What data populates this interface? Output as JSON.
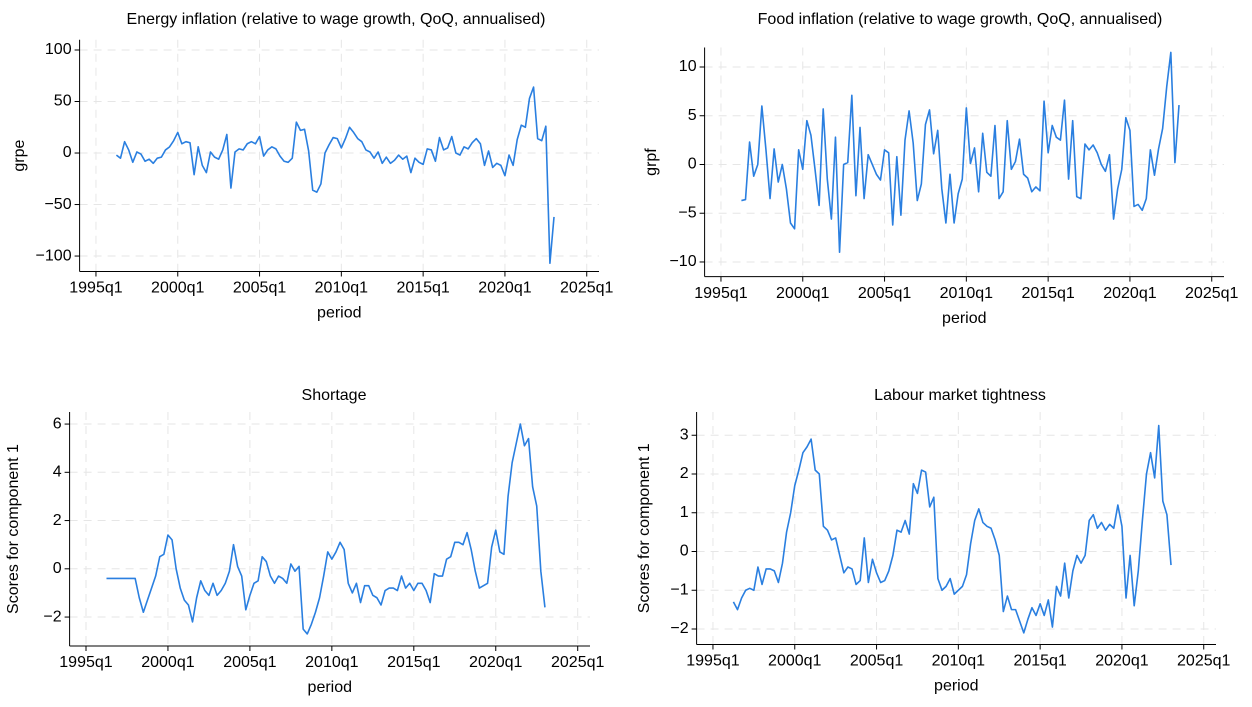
{
  "chart_data": [
    {
      "type": "line",
      "title": "Energy inflation (relative to wage growth, QoQ, annualised)",
      "xlabel": "period",
      "ylabel": "grpe",
      "color": "#2a7fe0",
      "grid": true,
      "xlim": [
        "1994q1",
        "2025q4"
      ],
      "xticks": [
        "1995q1",
        "2000q1",
        "2005q1",
        "2010q1",
        "2015q1",
        "2020q1",
        "2025q1"
      ],
      "ylim": [
        -115,
        110
      ],
      "yticks": [
        {
          "value": -100,
          "label": "−100"
        },
        {
          "value": -50,
          "label": "−50"
        },
        0,
        50,
        100
      ],
      "x": [
        "1996q2",
        "1996q3",
        "1996q4",
        "1997q1",
        "1997q2",
        "1997q3",
        "1997q4",
        "1998q1",
        "1998q2",
        "1998q3",
        "1998q4",
        "1999q1",
        "1999q2",
        "1999q3",
        "1999q4",
        "2000q1",
        "2000q2",
        "2000q3",
        "2000q4",
        "2001q1",
        "2001q2",
        "2001q3",
        "2001q4",
        "2002q1",
        "2002q2",
        "2002q3",
        "2002q4",
        "2003q1",
        "2003q2",
        "2003q3",
        "2003q4",
        "2004q1",
        "2004q2",
        "2004q3",
        "2004q4",
        "2005q1",
        "2005q2",
        "2005q3",
        "2005q4",
        "2006q1",
        "2006q2",
        "2006q3",
        "2006q4",
        "2007q1",
        "2007q2",
        "2007q3",
        "2007q4",
        "2008q1",
        "2008q2",
        "2008q3",
        "2008q4",
        "2009q1",
        "2009q2",
        "2009q3",
        "2009q4",
        "2010q1",
        "2010q2",
        "2010q3",
        "2010q4",
        "2011q1",
        "2011q2",
        "2011q3",
        "2011q4",
        "2012q1",
        "2012q2",
        "2012q3",
        "2012q4",
        "2013q1",
        "2013q2",
        "2013q3",
        "2013q4",
        "2014q1",
        "2014q2",
        "2014q3",
        "2014q4",
        "2015q1",
        "2015q2",
        "2015q3",
        "2015q4",
        "2016q1",
        "2016q2",
        "2016q3",
        "2016q4",
        "2017q1",
        "2017q2",
        "2017q3",
        "2017q4",
        "2018q1",
        "2018q2",
        "2018q3",
        "2018q4",
        "2019q1",
        "2019q2",
        "2019q3",
        "2019q4",
        "2020q1",
        "2020q2",
        "2020q3",
        "2020q4",
        "2021q1",
        "2021q2",
        "2021q3",
        "2021q4",
        "2022q1",
        "2022q2",
        "2022q3",
        "2022q4",
        "2023q1"
      ],
      "values": [
        -2,
        -5,
        11,
        3,
        -9,
        1,
        -1,
        -8,
        -6,
        -10,
        -5,
        -4,
        3,
        6,
        12,
        20,
        9,
        11,
        10,
        -21,
        6,
        -12,
        -19,
        1,
        -4,
        -6,
        3,
        18,
        -34,
        1,
        4,
        3,
        9,
        11,
        9,
        16,
        -3,
        3,
        6,
        4,
        -3,
        -8,
        -9,
        -5,
        30,
        22,
        23,
        2,
        -36,
        -38,
        -30,
        0,
        8,
        15,
        14,
        5,
        14,
        25,
        20,
        14,
        11,
        3,
        1,
        -5,
        1,
        -10,
        -4,
        -10,
        -7,
        -2,
        -6,
        -3,
        -19,
        -5,
        -9,
        -11,
        4,
        3,
        -8,
        15,
        3,
        5,
        16,
        0,
        -2,
        6,
        4,
        10,
        14,
        9,
        -12,
        2,
        -14,
        -10,
        -12,
        -22,
        -2,
        -12,
        13,
        27,
        25,
        53,
        64,
        14,
        12,
        26,
        -107,
        -62
      ]
    },
    {
      "type": "line",
      "title": "Food inflation (relative to wage growth, QoQ, annualised)",
      "xlabel": "period",
      "ylabel": "grpf",
      "color": "#2a7fe0",
      "grid": true,
      "xlim": [
        "1994q1",
        "2025q4"
      ],
      "xticks": [
        "1995q1",
        "2000q1",
        "2005q1",
        "2010q1",
        "2015q1",
        "2020q1",
        "2025q1"
      ],
      "ylim": [
        -11.5,
        12
      ],
      "yticks": [
        {
          "value": -10,
          "label": "−10"
        },
        {
          "value": -5,
          "label": "−5"
        },
        0,
        5,
        10
      ],
      "x": [
        "1996q2",
        "1996q3",
        "1996q4",
        "1997q1",
        "1997q2",
        "1997q3",
        "1997q4",
        "1998q1",
        "1998q2",
        "1998q3",
        "1998q4",
        "1999q1",
        "1999q2",
        "1999q3",
        "1999q4",
        "2000q1",
        "2000q2",
        "2000q3",
        "2000q4",
        "2001q1",
        "2001q2",
        "2001q3",
        "2001q4",
        "2002q1",
        "2002q2",
        "2002q3",
        "2002q4",
        "2003q1",
        "2003q2",
        "2003q3",
        "2003q4",
        "2004q1",
        "2004q2",
        "2004q3",
        "2004q4",
        "2005q1",
        "2005q2",
        "2005q3",
        "2005q4",
        "2006q1",
        "2006q2",
        "2006q3",
        "2006q4",
        "2007q1",
        "2007q2",
        "2007q3",
        "2007q4",
        "2008q1",
        "2008q2",
        "2008q3",
        "2008q4",
        "2009q1",
        "2009q2",
        "2009q3",
        "2009q4",
        "2010q1",
        "2010q2",
        "2010q3",
        "2010q4",
        "2011q1",
        "2011q2",
        "2011q3",
        "2011q4",
        "2012q1",
        "2012q2",
        "2012q3",
        "2012q4",
        "2013q1",
        "2013q2",
        "2013q3",
        "2013q4",
        "2014q1",
        "2014q2",
        "2014q3",
        "2014q4",
        "2015q1",
        "2015q2",
        "2015q3",
        "2015q4",
        "2016q1",
        "2016q2",
        "2016q3",
        "2016q4",
        "2017q1",
        "2017q2",
        "2017q3",
        "2017q4",
        "2018q1",
        "2018q2",
        "2018q3",
        "2018q4",
        "2019q1",
        "2019q2",
        "2019q3",
        "2019q4",
        "2020q1",
        "2020q2",
        "2020q3",
        "2020q4",
        "2021q1",
        "2021q2",
        "2021q3",
        "2021q4",
        "2022q1",
        "2022q2",
        "2022q3",
        "2022q4",
        "2023q1"
      ],
      "values": [
        -3.7,
        -3.6,
        2.3,
        -1.2,
        0,
        6,
        1.5,
        -3.5,
        1.6,
        -1.8,
        0,
        -2.5,
        -6,
        -6.6,
        1.5,
        -0.5,
        4.5,
        3,
        -0.5,
        -4.2,
        5.7,
        -1.5,
        -5.6,
        2.8,
        -9,
        0,
        0.2,
        7.1,
        -3.2,
        3.8,
        -3.5,
        1,
        0,
        -1,
        -1.6,
        1.5,
        1.2,
        -6.2,
        0.8,
        -5.2,
        2.5,
        5.5,
        2.2,
        -3.7,
        -2,
        4.1,
        5.6,
        1.1,
        3.5,
        -2.5,
        -6,
        -1,
        -6,
        -3,
        -1.5,
        5.8,
        0.1,
        1.7,
        -2.8,
        3.2,
        -0.8,
        -1.2,
        4,
        -3.5,
        -2.8,
        4.5,
        -0.5,
        0.3,
        2.6,
        -1,
        -1.4,
        -2.8,
        -2.3,
        -2.7,
        6.5,
        1.2,
        4,
        2.8,
        2.5,
        6.6,
        -1.5,
        4.5,
        -3.3,
        -3.5,
        2.1,
        1.5,
        2,
        1.2,
        0,
        -0.7,
        1,
        -5.6,
        -2.5,
        -0.5,
        4.8,
        3.5,
        -4.3,
        -4.1,
        -4.7,
        -3.5,
        1.5,
        -1.1,
        1.6,
        3.7,
        8,
        11.5,
        0.2,
        6.1
      ]
    },
    {
      "type": "line",
      "title": "Shortage",
      "xlabel": "period",
      "ylabel": "Scores for component 1",
      "color": "#2a7fe0",
      "grid": true,
      "xlim": [
        "1994q1",
        "2025q4"
      ],
      "xticks": [
        "1995q1",
        "2000q1",
        "2005q1",
        "2010q1",
        "2015q1",
        "2020q1",
        "2025q1"
      ],
      "ylim": [
        -3.2,
        6.5
      ],
      "yticks": [
        {
          "value": -2,
          "label": "−2"
        },
        0,
        2,
        4,
        6
      ],
      "x": [
        "1996q2",
        "1996q3",
        "1996q4",
        "1997q1",
        "1997q2",
        "1997q3",
        "1997q4",
        "1998q1",
        "1998q2",
        "1998q3",
        "1998q4",
        "1999q1",
        "1999q2",
        "1999q3",
        "1999q4",
        "2000q1",
        "2000q2",
        "2000q3",
        "2000q4",
        "2001q1",
        "2001q2",
        "2001q3",
        "2001q4",
        "2002q1",
        "2002q2",
        "2002q3",
        "2002q4",
        "2003q1",
        "2003q2",
        "2003q3",
        "2003q4",
        "2004q1",
        "2004q2",
        "2004q3",
        "2004q4",
        "2005q1",
        "2005q2",
        "2005q3",
        "2005q4",
        "2006q1",
        "2006q2",
        "2006q3",
        "2006q4",
        "2007q1",
        "2007q2",
        "2007q3",
        "2007q4",
        "2008q1",
        "2008q2",
        "2008q3",
        "2008q4",
        "2009q1",
        "2009q2",
        "2009q3",
        "2009q4",
        "2010q1",
        "2010q2",
        "2010q3",
        "2010q4",
        "2011q1",
        "2011q2",
        "2011q3",
        "2011q4",
        "2012q1",
        "2012q2",
        "2012q3",
        "2012q4",
        "2013q1",
        "2013q2",
        "2013q3",
        "2013q4",
        "2014q1",
        "2014q2",
        "2014q3",
        "2014q4",
        "2015q1",
        "2015q2",
        "2015q3",
        "2015q4",
        "2016q1",
        "2016q2",
        "2016q3",
        "2016q4",
        "2017q1",
        "2017q2",
        "2017q3",
        "2017q4",
        "2018q1",
        "2018q2",
        "2018q3",
        "2018q4",
        "2019q1",
        "2019q2",
        "2019q3",
        "2019q4",
        "2020q1",
        "2020q2",
        "2020q3",
        "2020q4",
        "2021q1",
        "2021q2",
        "2021q3",
        "2021q4",
        "2022q1",
        "2022q2",
        "2022q3",
        "2022q4",
        "2023q1"
      ],
      "values": [
        -0.4,
        -0.4,
        -0.4,
        -0.4,
        -0.4,
        -0.4,
        -0.4,
        -0.4,
        -1.2,
        -1.8,
        -1.3,
        -0.8,
        -0.3,
        0.5,
        0.6,
        1.4,
        1.2,
        0,
        -0.8,
        -1.3,
        -1.5,
        -2.2,
        -1.2,
        -0.5,
        -0.9,
        -1.1,
        -0.6,
        -1.1,
        -0.9,
        -0.6,
        -0.1,
        1,
        0.1,
        -0.3,
        -1.7,
        -1.1,
        -0.6,
        -0.5,
        0.5,
        0.3,
        -0.3,
        -0.6,
        -0.3,
        -0.4,
        -0.6,
        0.2,
        -0.1,
        0.1,
        -2.5,
        -2.7,
        -2.3,
        -1.8,
        -1.2,
        -0.3,
        0.7,
        0.4,
        0.7,
        1.1,
        0.8,
        -0.6,
        -1,
        -0.6,
        -1.4,
        -0.7,
        -0.7,
        -1.1,
        -1.2,
        -1.5,
        -0.9,
        -0.8,
        -0.8,
        -0.9,
        -0.3,
        -0.8,
        -0.6,
        -0.9,
        -0.6,
        -0.6,
        -0.9,
        -1.4,
        -0.2,
        -0.3,
        -0.3,
        0.4,
        0.5,
        1.1,
        1.1,
        1,
        1.5,
        0.8,
        -0.1,
        -0.8,
        -0.7,
        -0.6,
        0.9,
        1.6,
        0.7,
        0.6,
        3,
        4.4,
        5.2,
        6,
        5.1,
        5.4,
        3.4,
        2.6,
        -0.1,
        -1.6
      ]
    },
    {
      "type": "line",
      "title": "Labour market tightness",
      "xlabel": "period",
      "ylabel": "Scores for component 1",
      "color": "#2a7fe0",
      "grid": true,
      "xlim": [
        "1994q1",
        "2025q4"
      ],
      "xticks": [
        "1995q1",
        "2000q1",
        "2005q1",
        "2010q1",
        "2015q1",
        "2020q1",
        "2025q1"
      ],
      "ylim": [
        -2.4,
        3.6
      ],
      "yticks": [
        {
          "value": -2,
          "label": "−2"
        },
        {
          "value": -1,
          "label": "−1"
        },
        0,
        1,
        2,
        3
      ],
      "x": [
        "1996q2",
        "1996q3",
        "1996q4",
        "1997q1",
        "1997q2",
        "1997q3",
        "1997q4",
        "1998q1",
        "1998q2",
        "1998q3",
        "1998q4",
        "1999q1",
        "1999q2",
        "1999q3",
        "1999q4",
        "2000q1",
        "2000q2",
        "2000q3",
        "2000q4",
        "2001q1",
        "2001q2",
        "2001q3",
        "2001q4",
        "2002q1",
        "2002q2",
        "2002q3",
        "2002q4",
        "2003q1",
        "2003q2",
        "2003q3",
        "2003q4",
        "2004q1",
        "2004q2",
        "2004q3",
        "2004q4",
        "2005q1",
        "2005q2",
        "2005q3",
        "2005q4",
        "2006q1",
        "2006q2",
        "2006q3",
        "2006q4",
        "2007q1",
        "2007q2",
        "2007q3",
        "2007q4",
        "2008q1",
        "2008q2",
        "2008q3",
        "2008q4",
        "2009q1",
        "2009q2",
        "2009q3",
        "2009q4",
        "2010q1",
        "2010q2",
        "2010q3",
        "2010q4",
        "2011q1",
        "2011q2",
        "2011q3",
        "2011q4",
        "2012q1",
        "2012q2",
        "2012q3",
        "2012q4",
        "2013q1",
        "2013q2",
        "2013q3",
        "2013q4",
        "2014q1",
        "2014q2",
        "2014q3",
        "2014q4",
        "2015q1",
        "2015q2",
        "2015q3",
        "2015q4",
        "2016q1",
        "2016q2",
        "2016q3",
        "2016q4",
        "2017q1",
        "2017q2",
        "2017q3",
        "2017q4",
        "2018q1",
        "2018q2",
        "2018q3",
        "2018q4",
        "2019q1",
        "2019q2",
        "2019q3",
        "2019q4",
        "2020q1",
        "2020q2",
        "2020q3",
        "2020q4",
        "2021q1",
        "2021q2",
        "2021q3",
        "2021q4",
        "2022q1",
        "2022q2",
        "2022q3",
        "2022q4",
        "2023q1"
      ],
      "values": [
        -1.3,
        -1.5,
        -1.2,
        -1,
        -0.95,
        -1,
        -0.4,
        -0.85,
        -0.45,
        -0.45,
        -0.5,
        -0.8,
        -0.3,
        0.5,
        1,
        1.7,
        2.1,
        2.55,
        2.7,
        2.9,
        2.1,
        2,
        0.65,
        0.55,
        0.3,
        0.35,
        -0.1,
        -0.55,
        -0.4,
        -0.45,
        -0.85,
        -0.75,
        0.35,
        -0.8,
        -0.2,
        -0.55,
        -0.8,
        -0.75,
        -0.5,
        -0.1,
        0.55,
        0.5,
        0.8,
        0.45,
        1.75,
        1.5,
        2.1,
        2.05,
        1.15,
        1.4,
        -0.7,
        -1,
        -0.9,
        -0.7,
        -1.1,
        -1,
        -0.9,
        -0.6,
        0.2,
        0.8,
        1.1,
        0.75,
        0.65,
        0.6,
        0.3,
        -0.1,
        -1.55,
        -1.15,
        -1.5,
        -1.5,
        -1.8,
        -2.1,
        -1.75,
        -1.45,
        -1.65,
        -1.35,
        -1.65,
        -1.25,
        -1.95,
        -0.9,
        -1.15,
        -0.3,
        -1.2,
        -0.5,
        -0.1,
        -0.3,
        -0.1,
        0.8,
        0.95,
        0.6,
        0.75,
        0.55,
        0.7,
        0.6,
        1.2,
        0.65,
        -1.2,
        -0.1,
        -1.4,
        -0.5,
        0.8,
        2,
        2.55,
        1.9,
        3.25,
        1.3,
        0.95,
        -0.35
      ]
    }
  ]
}
